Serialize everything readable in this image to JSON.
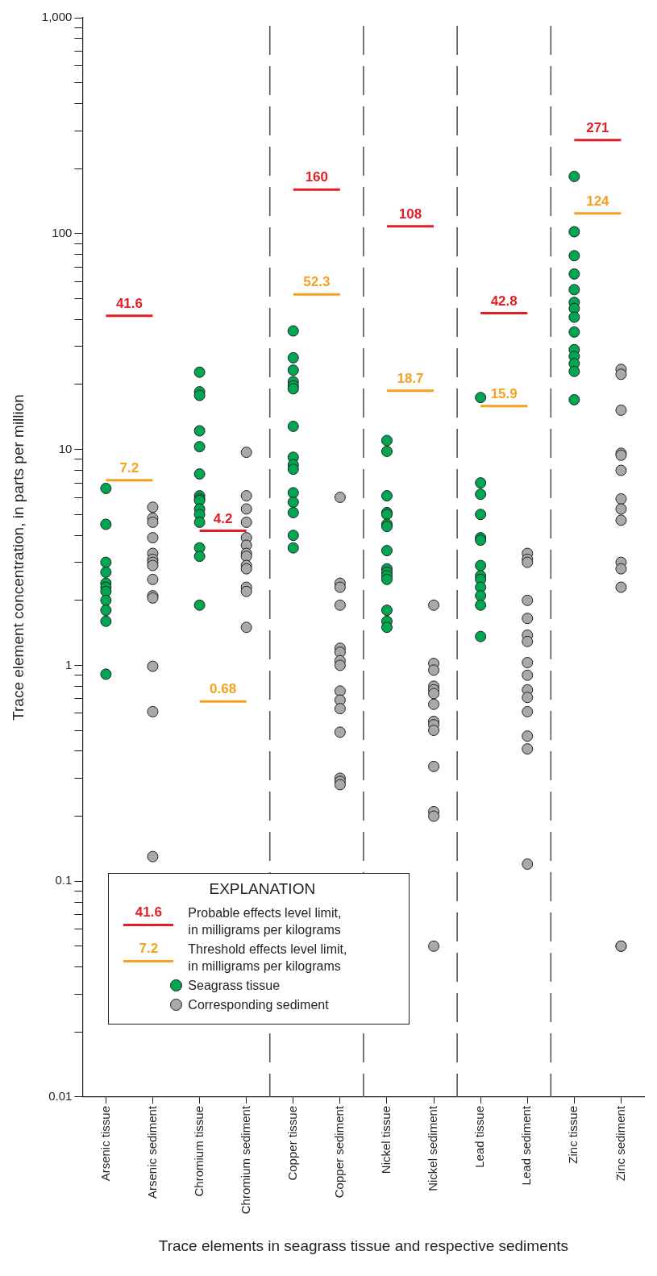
{
  "chart_data": {
    "type": "scatter",
    "xlabel": "Trace elements in seagrass tissue and respective sediments",
    "ylabel": "Trace element concentration, in parts per million",
    "categories": [
      "Arsenic tissue",
      "Arsenic sediment",
      "Chromium tissue",
      "Chromium sediment",
      "Copper tissue",
      "Copper sediment",
      "Nickel tissue",
      "Nickel sediment",
      "Lead tissue",
      "Lead sediment",
      "Zinc tissue",
      "Zinc sediment"
    ],
    "log": "y",
    "ylim": [
      0.01,
      1000
    ],
    "yticks": [
      0.01,
      {
        "value": 0.02,
        "label": null
      },
      {
        "value": 0.03,
        "label": null
      },
      {
        "value": 0.04,
        "label": null
      },
      {
        "value": 0.05,
        "label": null
      },
      {
        "value": 0.06,
        "label": null
      },
      {
        "value": 0.07,
        "label": null
      },
      {
        "value": 0.08,
        "label": null
      },
      {
        "value": 0.09,
        "label": null
      },
      0.1,
      {
        "value": 0.2,
        "label": null
      },
      {
        "value": 0.3,
        "label": null
      },
      {
        "value": 0.4,
        "label": null
      },
      {
        "value": 0.5,
        "label": null
      },
      {
        "value": 0.6,
        "label": null
      },
      {
        "value": 0.7,
        "label": null
      },
      {
        "value": 0.8,
        "label": null
      },
      {
        "value": 0.9,
        "label": null
      },
      1,
      {
        "value": 2,
        "label": null
      },
      {
        "value": 3,
        "label": null
      },
      {
        "value": 4,
        "label": null
      },
      {
        "value": 5,
        "label": null
      },
      {
        "value": 6,
        "label": null
      },
      {
        "value": 7,
        "label": null
      },
      {
        "value": 8,
        "label": null
      },
      {
        "value": 9,
        "label": null
      },
      10,
      {
        "value": 20,
        "label": null
      },
      {
        "value": 30,
        "label": null
      },
      {
        "value": 40,
        "label": null
      },
      {
        "value": 50,
        "label": null
      },
      {
        "value": 60,
        "label": null
      },
      {
        "value": 70,
        "label": null
      },
      {
        "value": 80,
        "label": null
      },
      {
        "value": 90,
        "label": null
      },
      100,
      {
        "value": 200,
        "label": null
      },
      {
        "value": 300,
        "label": null
      },
      {
        "value": 400,
        "label": null
      },
      {
        "value": 500,
        "label": null
      },
      {
        "value": 600,
        "label": null
      },
      {
        "value": 700,
        "label": null
      },
      {
        "value": 800,
        "label": null
      },
      {
        "value": 900,
        "label": null
      },
      {
        "value": 1000,
        "label": "1,000"
      }
    ],
    "grid": false,
    "legend": "bottom left",
    "legend_title": "EXPLANATION",
    "series": [
      {
        "name": "Probable effects level limit,\nin milligrams per kilograms",
        "type": "line",
        "marker": "none",
        "color": "#e31e24",
        "x": [
          "Arsenic tissue",
          "Arsenic sediment"
        ],
        "values": [
          41.6,
          41.6
        ],
        "value_labels": [
          "41.6",
          null
        ]
      },
      {
        "type": "line",
        "marker": "none",
        "color": "#e31e24",
        "x": [
          "Chromium tissue",
          "Chromium sediment"
        ],
        "values": [
          4.2,
          4.2
        ],
        "value_labels": [
          "4.2",
          null
        ]
      },
      {
        "type": "line",
        "marker": "none",
        "color": "#e31e24",
        "x": [
          "Copper tissue",
          "Copper sediment"
        ],
        "values": [
          160,
          160
        ],
        "value_labels": [
          "160",
          null
        ]
      },
      {
        "type": "line",
        "marker": "none",
        "color": "#e31e24",
        "x": [
          "Nickel tissue",
          "Nickel sediment"
        ],
        "values": [
          108,
          108
        ],
        "value_labels": [
          "108",
          null
        ]
      },
      {
        "type": "line",
        "marker": "none",
        "color": "#e31e24",
        "x": [
          "Lead tissue",
          "Lead sediment"
        ],
        "values": [
          42.8,
          42.8
        ],
        "value_labels": [
          "42.8",
          null
        ]
      },
      {
        "type": "line",
        "marker": "none",
        "color": "#e31e24",
        "x": [
          "Zinc tissue",
          "Zinc sediment"
        ],
        "values": [
          271,
          271
        ],
        "value_labels": [
          "271",
          null
        ]
      },
      {
        "name": "Threshold effects level limit,\nin milligrams per kilograms",
        "type": "line",
        "marker": "none",
        "color": "#f5a11c",
        "x": [
          "Arsenic tissue",
          "Arsenic sediment"
        ],
        "values": [
          7.2,
          7.2
        ],
        "value_labels": [
          "7.2",
          null
        ]
      },
      {
        "type": "line",
        "marker": "none",
        "color": "#f5a11c",
        "x": [
          "Chromium tissue",
          "Chromium sediment"
        ],
        "values": [
          0.68,
          0.68
        ],
        "value_labels": [
          "0.68",
          null
        ]
      },
      {
        "type": "line",
        "marker": "none",
        "color": "#f5a11c",
        "x": [
          "Copper tissue",
          "Copper sediment"
        ],
        "values": [
          52.3,
          52.3
        ],
        "value_labels": [
          "52.3",
          null
        ]
      },
      {
        "type": "line",
        "marker": "none",
        "color": "#f5a11c",
        "x": [
          "Nickel tissue",
          "Nickel sediment"
        ],
        "values": [
          18.7,
          18.7
        ],
        "value_labels": [
          "18.7",
          null
        ]
      },
      {
        "type": "line",
        "marker": "none",
        "color": "#f5a11c",
        "x": [
          "Lead tissue",
          "Lead sediment"
        ],
        "values": [
          15.9,
          15.9
        ],
        "value_labels": [
          "15.9",
          null
        ]
      },
      {
        "type": "line",
        "marker": "none",
        "color": "#f5a11c",
        "x": [
          "Zinc tissue",
          "Zinc sediment"
        ],
        "values": [
          124,
          124
        ],
        "value_labels": [
          "124",
          null
        ]
      },
      {
        "name": "Seagrass tissue",
        "marker": "circle",
        "color": "#00a651",
        "x": [
          "Arsenic tissue",
          "Arsenic tissue",
          "Arsenic tissue",
          "Arsenic tissue",
          "Arsenic tissue",
          "Arsenic tissue",
          "Arsenic tissue",
          "Arsenic tissue",
          "Arsenic tissue",
          "Arsenic tissue",
          "Arsenic tissue",
          "Chromium tissue",
          "Chromium tissue",
          "Chromium tissue",
          "Chromium tissue",
          "Chromium tissue",
          "Chromium tissue",
          "Chromium tissue",
          "Chromium tissue",
          "Chromium tissue",
          "Chromium tissue",
          "Chromium tissue",
          "Chromium tissue",
          "Chromium tissue",
          "Chromium tissue",
          "Chromium tissue",
          "Copper tissue",
          "Copper tissue",
          "Copper tissue",
          "Copper tissue",
          "Copper tissue",
          "Copper tissue",
          "Copper tissue",
          "Copper tissue",
          "Copper tissue",
          "Copper tissue",
          "Copper tissue",
          "Copper tissue",
          "Copper tissue",
          "Copper tissue",
          "Copper tissue",
          "Nickel tissue",
          "Nickel tissue",
          "Nickel tissue",
          "Nickel tissue",
          "Nickel tissue",
          "Nickel tissue",
          "Nickel tissue",
          "Nickel tissue",
          "Nickel tissue",
          "Nickel tissue",
          "Nickel tissue",
          "Nickel tissue",
          "Nickel tissue",
          "Nickel tissue",
          "Nickel tissue",
          "Lead tissue",
          "Lead tissue",
          "Lead tissue",
          "Lead tissue",
          "Lead tissue",
          "Lead tissue",
          "Lead tissue",
          "Lead tissue",
          "Lead tissue",
          "Lead tissue",
          "Lead tissue",
          "Lead tissue",
          "Lead tissue",
          "Zinc tissue",
          "Zinc tissue",
          "Zinc tissue",
          "Zinc tissue",
          "Zinc tissue",
          "Zinc tissue",
          "Zinc tissue",
          "Zinc tissue",
          "Zinc tissue",
          "Zinc tissue",
          "Zinc tissue",
          "Zinc tissue",
          "Zinc tissue",
          "Zinc tissue"
        ],
        "values": [
          6.6,
          4.5,
          3.0,
          2.7,
          2.4,
          2.3,
          2.2,
          2.0,
          1.8,
          1.6,
          0.91,
          22.8,
          18.5,
          17.8,
          12.2,
          10.3,
          7.7,
          6.1,
          5.9,
          5.8,
          5.3,
          5.0,
          4.6,
          3.5,
          3.2,
          1.9,
          35.4,
          26.6,
          23.3,
          20.6,
          19.7,
          19.1,
          12.8,
          9.2,
          8.5,
          8.1,
          6.3,
          5.7,
          5.1,
          4.0,
          3.5,
          11.0,
          9.8,
          6.1,
          5.1,
          5.0,
          4.5,
          4.4,
          3.4,
          2.8,
          2.7,
          2.6,
          2.5,
          1.8,
          1.6,
          1.5,
          17.4,
          7.0,
          6.2,
          5.0,
          3.9,
          3.8,
          2.9,
          2.6,
          2.5,
          2.3,
          2.1,
          1.9,
          1.36,
          184,
          102,
          79,
          65,
          55,
          48,
          45,
          41,
          35,
          29,
          27,
          25,
          23,
          17
        ]
      },
      {
        "name": "Corresponding sediment",
        "marker": "circle",
        "color": "#a7a9ac",
        "x": [
          "Arsenic sediment",
          "Arsenic sediment",
          "Arsenic sediment",
          "Arsenic sediment",
          "Arsenic sediment",
          "Arsenic sediment",
          "Arsenic sediment",
          "Arsenic sediment",
          "Arsenic sediment",
          "Arsenic sediment",
          "Arsenic sediment",
          "Arsenic sediment",
          "Arsenic sediment",
          "Arsenic sediment",
          "Chromium sediment",
          "Chromium sediment",
          "Chromium sediment",
          "Chromium sediment",
          "Chromium sediment",
          "Chromium sediment",
          "Chromium sediment",
          "Chromium sediment",
          "Chromium sediment",
          "Chromium sediment",
          "Chromium sediment",
          "Chromium sediment",
          "Chromium sediment",
          "Copper sediment",
          "Copper sediment",
          "Copper sediment",
          "Copper sediment",
          "Copper sediment",
          "Copper sediment",
          "Copper sediment",
          "Copper sediment",
          "Copper sediment",
          "Copper sediment",
          "Copper sediment",
          "Copper sediment",
          "Copper sediment",
          "Copper sediment",
          "Copper sediment",
          "Nickel sediment",
          "Nickel sediment",
          "Nickel sediment",
          "Nickel sediment",
          "Nickel sediment",
          "Nickel sediment",
          "Nickel sediment",
          "Nickel sediment",
          "Nickel sediment",
          "Nickel sediment",
          "Nickel sediment",
          "Nickel sediment",
          "Nickel sediment",
          "Nickel sediment",
          "Lead sediment",
          "Lead sediment",
          "Lead sediment",
          "Lead sediment",
          "Lead sediment",
          "Lead sediment",
          "Lead sediment",
          "Lead sediment",
          "Lead sediment",
          "Lead sediment",
          "Lead sediment",
          "Lead sediment",
          "Lead sediment",
          "Lead sediment",
          "Lead sediment",
          "Zinc sediment",
          "Zinc sediment",
          "Zinc sediment",
          "Zinc sediment",
          "Zinc sediment",
          "Zinc sediment",
          "Zinc sediment",
          "Zinc sediment",
          "Zinc sediment",
          "Zinc sediment",
          "Zinc sediment",
          "Zinc sediment",
          "Zinc sediment",
          "Zinc sediment"
        ],
        "values": [
          5.4,
          4.8,
          4.6,
          3.9,
          3.3,
          3.1,
          3.0,
          2.9,
          2.5,
          2.1,
          2.05,
          0.99,
          0.61,
          0.13,
          9.7,
          6.1,
          5.3,
          4.6,
          3.9,
          3.6,
          3.3,
          3.2,
          2.9,
          2.8,
          2.3,
          2.2,
          1.5,
          6.0,
          2.4,
          2.3,
          1.9,
          1.2,
          1.15,
          1.05,
          1.0,
          0.76,
          0.69,
          0.63,
          0.49,
          0.3,
          0.29,
          0.28,
          1.9,
          1.02,
          0.95,
          0.8,
          0.77,
          0.74,
          0.66,
          0.55,
          0.53,
          0.5,
          0.34,
          0.21,
          0.2,
          0.05,
          3.3,
          3.1,
          3.0,
          2.0,
          1.65,
          1.38,
          1.29,
          1.03,
          0.9,
          0.77,
          0.71,
          0.61,
          0.47,
          0.41,
          0.12,
          23.5,
          22.3,
          15.2,
          9.6,
          9.4,
          8.0,
          5.9,
          5.3,
          4.7,
          3.0,
          2.8,
          2.3,
          0.05,
          0.05
        ]
      }
    ]
  }
}
